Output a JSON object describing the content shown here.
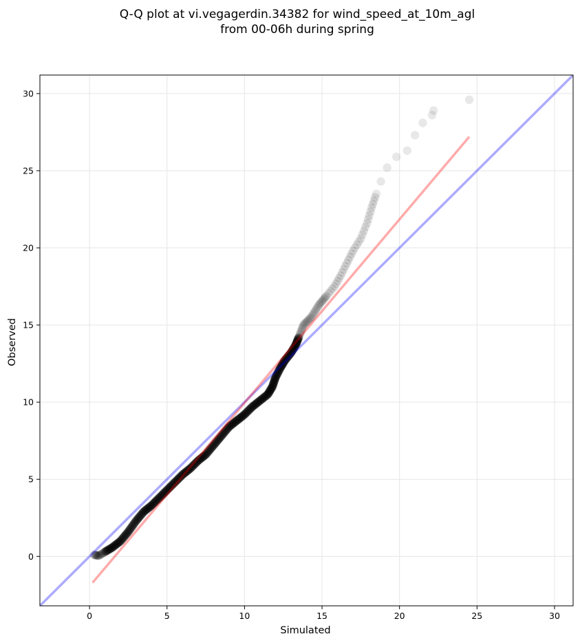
{
  "chart_data": {
    "type": "scatter",
    "title": "Q-Q plot at vi.vegagerdin.34382 for wind_speed_at_10m_agl",
    "subtitle": "from 00-06h during spring",
    "xlabel": "Simulated",
    "ylabel": "Observed",
    "xlim": [
      -3.2,
      31.2
    ],
    "ylim": [
      -3.2,
      31.2
    ],
    "x_ticks": [
      0,
      5,
      10,
      15,
      20,
      25,
      30
    ],
    "y_ticks": [
      0,
      5,
      10,
      15,
      20,
      25,
      30
    ],
    "x_tick_labels": [
      "0",
      "5",
      "10",
      "15",
      "20",
      "25",
      "30"
    ],
    "y_tick_labels": [
      "0",
      "5",
      "10",
      "15",
      "20",
      "25",
      "30"
    ],
    "grid": true,
    "point_color": "#000000",
    "identity_line": {
      "color": "#0000ff",
      "points": [
        [
          -3.2,
          -3.2
        ],
        [
          31.2,
          31.2
        ]
      ]
    },
    "fit_line": {
      "color": "#ff0000",
      "points": [
        [
          0.2,
          -1.7
        ],
        [
          24.5,
          27.2
        ]
      ]
    },
    "quantile_curve": [
      [
        0.3,
        0.1
      ],
      [
        0.6,
        0.05
      ],
      [
        1.0,
        0.3
      ],
      [
        1.5,
        0.6
      ],
      [
        2.0,
        1.0
      ],
      [
        2.5,
        1.6
      ],
      [
        3.0,
        2.3
      ],
      [
        3.5,
        2.9
      ],
      [
        4.0,
        3.3
      ],
      [
        4.5,
        3.8
      ],
      [
        5.0,
        4.3
      ],
      [
        5.5,
        4.8
      ],
      [
        6.0,
        5.3
      ],
      [
        6.5,
        5.7
      ],
      [
        7.0,
        6.2
      ],
      [
        7.5,
        6.6
      ],
      [
        8.0,
        7.2
      ],
      [
        8.5,
        7.8
      ],
      [
        9.0,
        8.4
      ],
      [
        9.5,
        8.8
      ],
      [
        10.0,
        9.2
      ],
      [
        10.5,
        9.7
      ],
      [
        11.0,
        10.1
      ],
      [
        11.5,
        10.5
      ],
      [
        11.8,
        11.0
      ],
      [
        12.0,
        11.6
      ],
      [
        12.3,
        12.2
      ],
      [
        12.6,
        12.7
      ],
      [
        13.0,
        13.2
      ],
      [
        13.3,
        13.7
      ],
      [
        13.5,
        14.2
      ],
      [
        13.8,
        15.0
      ],
      [
        14.3,
        15.5
      ],
      [
        14.8,
        16.3
      ],
      [
        15.3,
        16.9
      ],
      [
        15.8,
        17.5
      ],
      [
        16.2,
        18.2
      ],
      [
        16.6,
        19.0
      ],
      [
        17.0,
        19.8
      ],
      [
        17.5,
        20.6
      ],
      [
        17.9,
        21.6
      ],
      [
        18.2,
        22.6
      ],
      [
        18.5,
        23.5
      ],
      [
        18.8,
        24.3
      ],
      [
        19.2,
        25.2
      ],
      [
        19.8,
        25.9
      ],
      [
        20.5,
        26.3
      ],
      [
        21.0,
        27.3
      ],
      [
        21.5,
        28.1
      ],
      [
        22.1,
        28.6
      ],
      [
        22.2,
        28.9
      ],
      [
        24.5,
        29.6
      ]
    ]
  }
}
